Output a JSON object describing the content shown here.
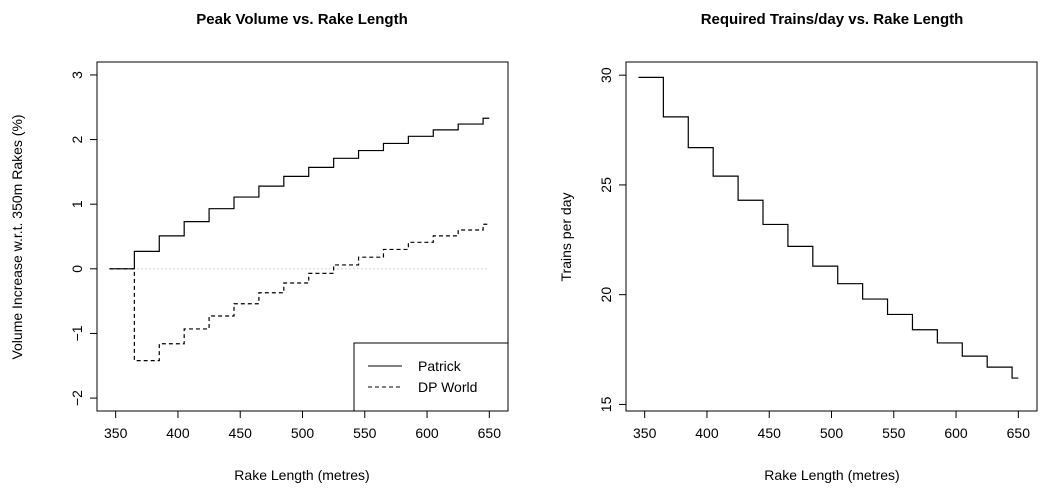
{
  "chart_data": [
    {
      "type": "line",
      "step": true,
      "title": "Peak Volume vs. Rake Length",
      "xlabel": "Rake Length (metres)",
      "ylabel": "Volume Increase w.r.t. 350m Rakes (%)",
      "xlim": [
        335,
        665
      ],
      "ylim": [
        -2.2,
        3.2
      ],
      "xticks": [
        "350",
        "400",
        "450",
        "500",
        "550",
        "600",
        "650"
      ],
      "yticks": [
        "−2",
        "−1",
        "0",
        "1",
        "2",
        "3"
      ],
      "reference_line": {
        "y": 0,
        "style": "dotted"
      },
      "legend": {
        "position": "bottom-right",
        "entries": [
          "Patrick",
          "DP World"
        ]
      },
      "series": [
        {
          "name": "Patrick",
          "line_style": "solid",
          "x": [
            345,
            365,
            385,
            405,
            425,
            445,
            465,
            485,
            505,
            525,
            545,
            565,
            585,
            605,
            625,
            645,
            650
          ],
          "values": [
            0,
            0.27,
            0.51,
            0.73,
            0.93,
            1.11,
            1.28,
            1.43,
            1.57,
            1.71,
            1.83,
            1.94,
            2.05,
            2.15,
            2.24,
            2.33,
            2.33
          ]
        },
        {
          "name": "DP World",
          "line_style": "dashed",
          "x": [
            345,
            365,
            385,
            405,
            425,
            445,
            465,
            485,
            505,
            525,
            545,
            565,
            585,
            605,
            625,
            645,
            650
          ],
          "values": [
            0,
            -1.42,
            -1.16,
            -0.93,
            -0.73,
            -0.54,
            -0.37,
            -0.22,
            -0.07,
            0.06,
            0.18,
            0.3,
            0.41,
            0.51,
            0.6,
            0.69,
            0.69
          ]
        }
      ]
    },
    {
      "type": "line",
      "step": true,
      "title": "Required Trains/day vs. Rake Length",
      "xlabel": "Rake Length (metres)",
      "ylabel": "Trains per day",
      "xlim": [
        335,
        665
      ],
      "ylim": [
        14.7,
        30.6
      ],
      "xticks": [
        "350",
        "400",
        "450",
        "500",
        "550",
        "600",
        "650"
      ],
      "yticks": [
        "15",
        "20",
        "25",
        "30"
      ],
      "series": [
        {
          "line_style": "solid",
          "x": [
            345,
            365,
            385,
            405,
            425,
            445,
            465,
            485,
            505,
            525,
            545,
            565,
            585,
            605,
            625,
            645,
            650
          ],
          "values": [
            29.9,
            28.1,
            26.7,
            25.4,
            24.3,
            23.2,
            22.2,
            21.3,
            20.5,
            19.8,
            19.1,
            18.4,
            17.8,
            17.2,
            16.7,
            16.2,
            16.2
          ]
        }
      ]
    }
  ],
  "colors": {
    "line": "#000000",
    "reference": "#aaaaaa"
  }
}
